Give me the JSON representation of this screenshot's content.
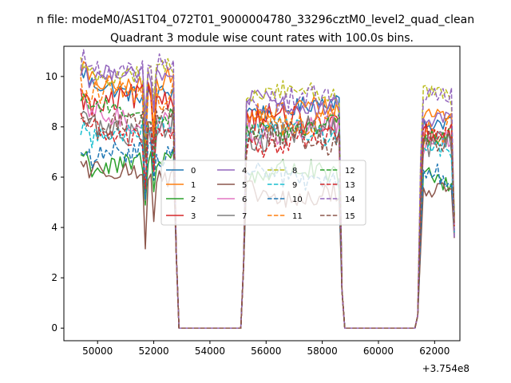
{
  "figure": {
    "suptitle": "n file: modeM0/AS1T04_072T01_9000004780_33296cztM0_level2_quad_clean"
  },
  "chart_data": {
    "type": "line",
    "title": "Quadrant 3 module wise count rates with 100.0s bins.",
    "xlabel": "",
    "ylabel": "",
    "x_offset_label": "+3.754e8",
    "xlim": [
      48800,
      62900
    ],
    "ylim": [
      -0.5,
      11.2
    ],
    "x_ticks": [
      50000,
      52000,
      54000,
      56000,
      58000,
      60000,
      62000
    ],
    "x_tick_labels": [
      "50000",
      "52000",
      "54000",
      "56000",
      "58000",
      "60000",
      "62000"
    ],
    "y_ticks": [
      0,
      2,
      4,
      6,
      8,
      10
    ],
    "y_tick_labels": [
      "0",
      "2",
      "4",
      "6",
      "8",
      "10"
    ],
    "legend": {
      "placement": "center",
      "columns": 4
    },
    "on_intervals": [
      [
        49400,
        52800
      ],
      [
        55200,
        58700
      ],
      [
        61400,
        62700
      ]
    ],
    "bin_seconds": 100,
    "series": [
      {
        "name": "0",
        "color": "#1f77b4",
        "dash": "solid",
        "segment_levels": [
          9.5,
          8.8,
          8.0
        ]
      },
      {
        "name": "1",
        "color": "#ff7f0e",
        "dash": "solid",
        "segment_levels": [
          9.8,
          8.6,
          8.3
        ]
      },
      {
        "name": "2",
        "color": "#2ca02c",
        "dash": "solid",
        "segment_levels": [
          6.6,
          6.1,
          5.8
        ]
      },
      {
        "name": "3",
        "color": "#d62728",
        "dash": "solid",
        "segment_levels": [
          9.0,
          8.2,
          7.7
        ]
      },
      {
        "name": "4",
        "color": "#9467bd",
        "dash": "solid",
        "segment_levels": [
          10.0,
          8.9,
          8.6
        ]
      },
      {
        "name": "5",
        "color": "#8c564b",
        "dash": "solid",
        "segment_levels": [
          6.1,
          5.3,
          5.6
        ]
      },
      {
        "name": "6",
        "color": "#e377c2",
        "dash": "solid",
        "segment_levels": [
          8.3,
          7.9,
          7.3
        ]
      },
      {
        "name": "7",
        "color": "#7f7f7f",
        "dash": "solid",
        "segment_levels": [
          8.0,
          7.7,
          7.1
        ]
      },
      {
        "name": "8",
        "color": "#bcbd22",
        "dash": "dashed",
        "segment_levels": [
          10.2,
          9.3,
          9.1
        ]
      },
      {
        "name": "9",
        "color": "#17becf",
        "dash": "dashed",
        "segment_levels": [
          7.8,
          7.8,
          7.3
        ]
      },
      {
        "name": "10",
        "color": "#1f77b4",
        "dash": "dashed",
        "segment_levels": [
          6.8,
          6.0,
          6.3
        ]
      },
      {
        "name": "11",
        "color": "#ff7f0e",
        "dash": "dashed",
        "segment_levels": [
          9.2,
          8.3,
          8.0
        ]
      },
      {
        "name": "12",
        "color": "#2ca02c",
        "dash": "dashed",
        "segment_levels": [
          8.6,
          8.0,
          7.6
        ]
      },
      {
        "name": "13",
        "color": "#d62728",
        "dash": "dashed",
        "segment_levels": [
          7.8,
          7.4,
          7.6
        ]
      },
      {
        "name": "14",
        "color": "#9467bd",
        "dash": "dashed",
        "segment_levels": [
          10.3,
          9.0,
          9.2
        ]
      },
      {
        "name": "15",
        "color": "#8c564b",
        "dash": "dashed",
        "segment_levels": [
          8.2,
          7.5,
          7.4
        ]
      }
    ]
  }
}
